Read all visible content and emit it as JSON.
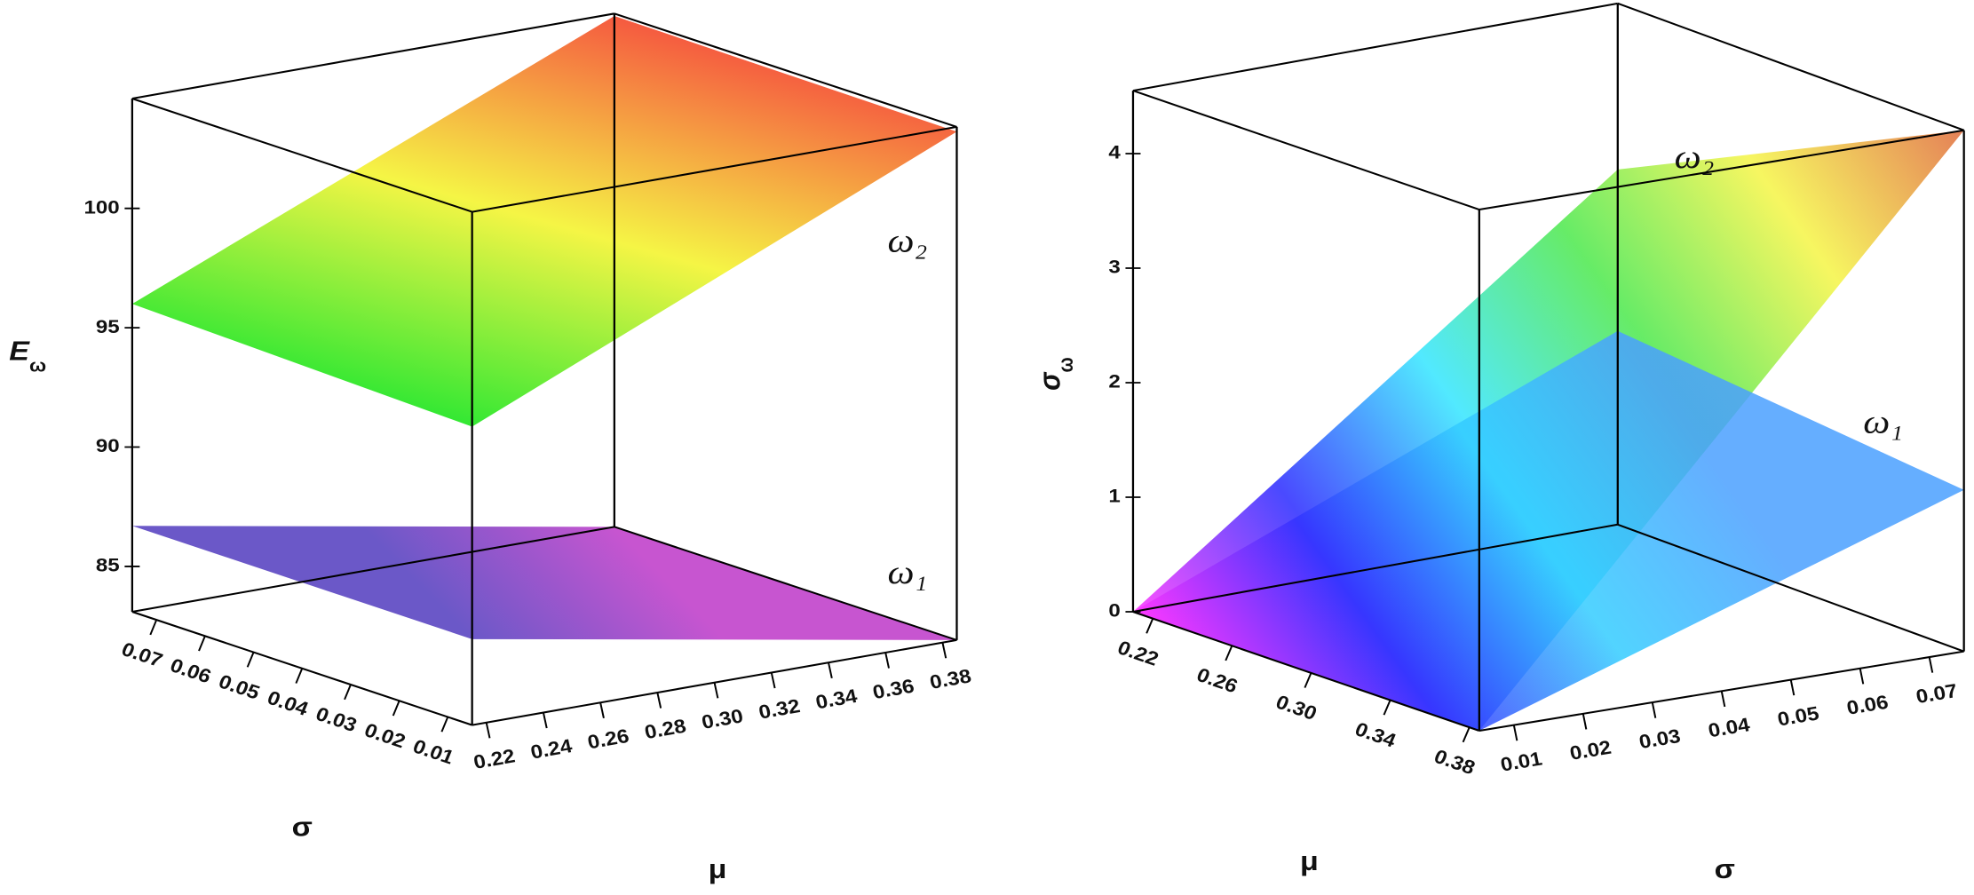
{
  "chart_data": [
    {
      "type": "surface3d",
      "zlabel": "E",
      "zlabel_sub": "ω",
      "xlabel": "σ",
      "ylabel": "μ",
      "xlim": [
        0.005,
        0.075
      ],
      "xticks": [
        0.01,
        0.02,
        0.03,
        0.04,
        0.05,
        0.06,
        0.07
      ],
      "ylim": [
        0.215,
        0.385
      ],
      "yticks": [
        0.22,
        0.24,
        0.26,
        0.28,
        {
          "value": 0.3,
          "label": "0.30"
        },
        0.32,
        0.34,
        0.36,
        0.38
      ],
      "zlim": [
        83.1,
        104.6
      ],
      "zticks": [
        85,
        90,
        95,
        100
      ],
      "series": [
        {
          "name": "ω₂",
          "colors": [
            "#33e833",
            "#f5f545",
            "#f55a40"
          ],
          "values": [
            [
              95.6,
              104.4
            ],
            [
              96,
              104.5
            ]
          ]
        },
        {
          "name": "ω₁",
          "colors": [
            "#c755d0",
            "#6b58c8"
          ],
          "values": [
            [
              86.7,
              83.1
            ],
            [
              86.7,
              83.1
            ]
          ]
        }
      ]
    },
    {
      "type": "surface3d",
      "zlabel": "σ",
      "zlabel_sub": "ω",
      "xlabel": "σ",
      "ylabel": "μ",
      "xlim": [
        0.005,
        0.075
      ],
      "xticks": [
        0.01,
        0.02,
        0.03,
        0.04,
        0.05,
        0.06,
        0.07
      ],
      "ylim": [
        0.21,
        0.385
      ],
      "yticks": [
        0.22,
        0.26,
        {
          "value": 0.3,
          "label": "0.30"
        },
        0.34,
        0.38
      ],
      "zlim": [
        0,
        4.55
      ],
      "zticks": [
        0,
        1,
        2,
        3,
        4
      ],
      "series": [
        {
          "name": "ω₂",
          "colors": [
            "#ff33ff",
            "#2a2aff",
            "#33e5ff",
            "#4ce84c",
            "#f5f545",
            "#e06a3a"
          ],
          "values": [
            [
              0,
              0
            ],
            [
              3.1,
              4.55
            ]
          ]
        },
        {
          "name": "ω₁",
          "colors": [
            "#ff33ff",
            "#3333ff",
            "#33ccff",
            "#4aa0ff"
          ],
          "values": [
            [
              0,
              0
            ],
            [
              1.69,
              1.41
            ]
          ]
        }
      ]
    }
  ]
}
